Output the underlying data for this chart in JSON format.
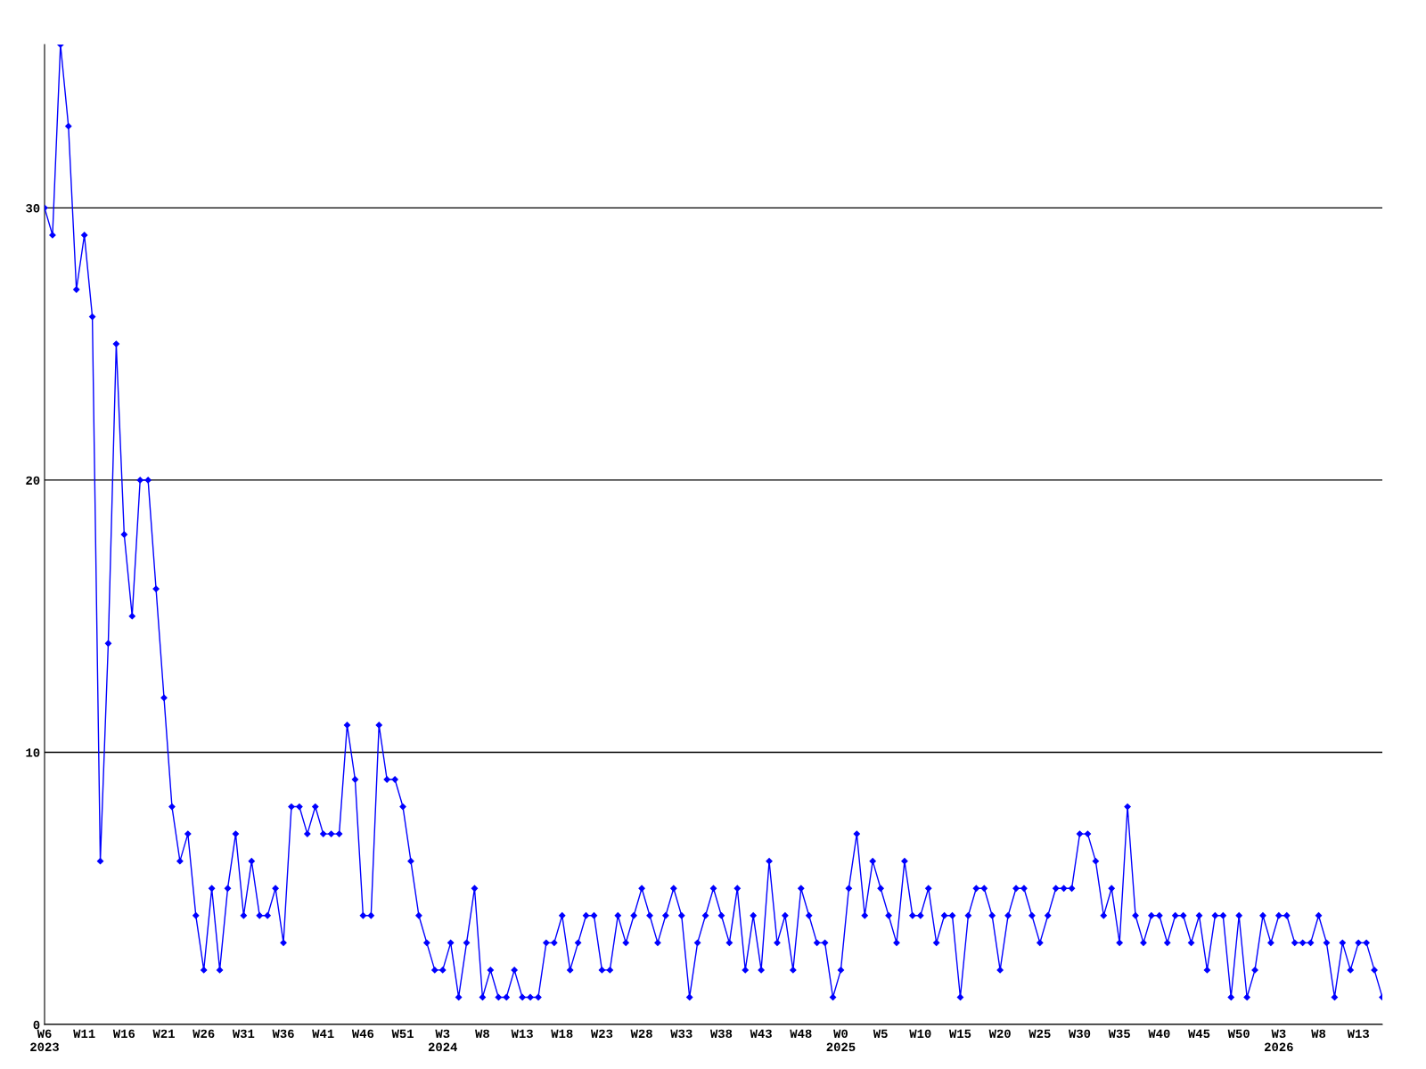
{
  "chart_data": {
    "type": "line",
    "categories": [
      "W6\n2023",
      null,
      null,
      null,
      null,
      "W11",
      null,
      null,
      null,
      null,
      "W16",
      null,
      null,
      null,
      null,
      "W21",
      null,
      null,
      null,
      null,
      "W26",
      null,
      null,
      null,
      null,
      "W31",
      null,
      null,
      null,
      null,
      "W36",
      null,
      null,
      null,
      null,
      "W41",
      null,
      null,
      null,
      null,
      "W46",
      null,
      null,
      null,
      null,
      "W51",
      null,
      null,
      null,
      null,
      "W3\n2024",
      null,
      null,
      null,
      null,
      "W8",
      null,
      null,
      null,
      null,
      "W13",
      null,
      null,
      null,
      null,
      "W18",
      null,
      null,
      null,
      null,
      "W23",
      null,
      null,
      null,
      null,
      "W28",
      null,
      null,
      null,
      null,
      "W33",
      null,
      null,
      null,
      null,
      "W38",
      null,
      null,
      null,
      null,
      "W43",
      null,
      null,
      null,
      null,
      "W48",
      null,
      null,
      null,
      null,
      "W0\n2025",
      null,
      null,
      null,
      null,
      "W5",
      null,
      null,
      null,
      null,
      "W10",
      null,
      null,
      null,
      null,
      "W15",
      null,
      null,
      null,
      null,
      "W20",
      null,
      null,
      null,
      null,
      "W25",
      null,
      null,
      null,
      null,
      "W30",
      null,
      null,
      null,
      null,
      "W35",
      null,
      null,
      null,
      null,
      "W40",
      null,
      null,
      null,
      null,
      "W45",
      null,
      null,
      null,
      null,
      "W50",
      null,
      null,
      null,
      null,
      "W3\n2026",
      null,
      null,
      null,
      null,
      "W8",
      null,
      null,
      null,
      null,
      "W13",
      null,
      null,
      null
    ],
    "series": [
      {
        "color": "#0000ff",
        "values": [
          30,
          29,
          36,
          33,
          27,
          29,
          26,
          6,
          14,
          25,
          18,
          15,
          20,
          20,
          16,
          12,
          8,
          6,
          7,
          4,
          2,
          5,
          2,
          5,
          7,
          4,
          6,
          4,
          4,
          5,
          3,
          8,
          8,
          7,
          8,
          7,
          7,
          7,
          11,
          9,
          4,
          4,
          11,
          9,
          9,
          8,
          6,
          4,
          3,
          2,
          2,
          3,
          1,
          3,
          5,
          1,
          2,
          1,
          1,
          2,
          1,
          1,
          1,
          3,
          3,
          4,
          2,
          3,
          4,
          4,
          2,
          2,
          4,
          3,
          4,
          5,
          4,
          3,
          4,
          5,
          4,
          1,
          3,
          4,
          5,
          4,
          3,
          5,
          2,
          4,
          2,
          6,
          3,
          4,
          2,
          5,
          4,
          3,
          3,
          1,
          2,
          5,
          7,
          4,
          6,
          5,
          4,
          3,
          6,
          4,
          4,
          5,
          3,
          4,
          4,
          1,
          4,
          5,
          5,
          4,
          2,
          4,
          5,
          5,
          4,
          3,
          4,
          5,
          5,
          5,
          7,
          7,
          6,
          4,
          5,
          3,
          8,
          4,
          3,
          4,
          4,
          3,
          4,
          4,
          3,
          4,
          2,
          4,
          4,
          1,
          4,
          1,
          2,
          4,
          3,
          4,
          4,
          3,
          3,
          3,
          4,
          3,
          1,
          3,
          2,
          3,
          3,
          2,
          1
        ]
      }
    ],
    "ylim": [
      0,
      36
    ],
    "yticks": [
      0,
      10,
      20,
      30
    ],
    "grid": "y",
    "legend": false,
    "marker": "diamond",
    "line_style": "solid"
  }
}
